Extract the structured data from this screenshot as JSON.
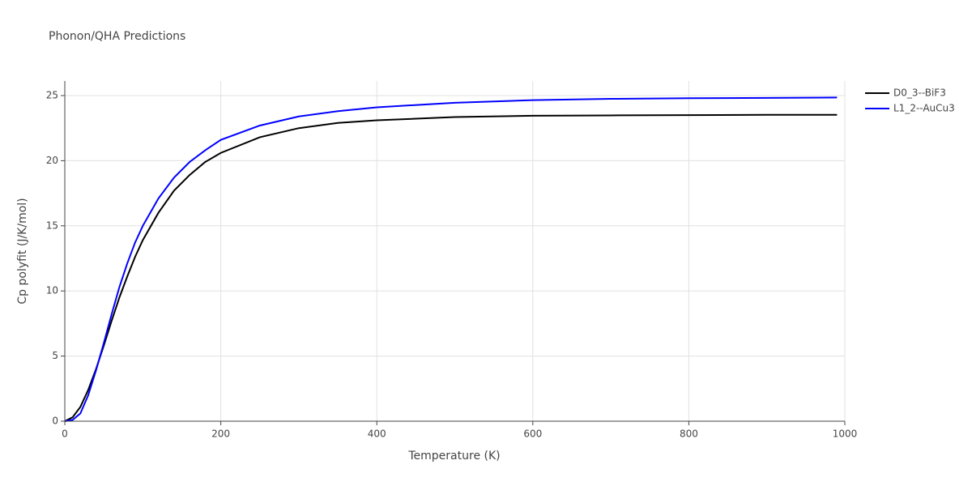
{
  "chart_data": {
    "type": "line",
    "title": "Phonon/QHA Predictions",
    "xlabel": "Temperature (K)",
    "ylabel": "Cp polyfit (J/K/mol)",
    "x": [
      0,
      10,
      20,
      30,
      40,
      50,
      60,
      70,
      80,
      90,
      100,
      120,
      140,
      160,
      180,
      200,
      250,
      300,
      350,
      400,
      500,
      600,
      700,
      800,
      900,
      990
    ],
    "series": [
      {
        "name": "D0_3--BiF3",
        "color": "#000000",
        "values": [
          0,
          0.3,
          1.1,
          2.4,
          4.0,
          5.8,
          7.7,
          9.5,
          11.1,
          12.6,
          13.9,
          16.0,
          17.7,
          18.9,
          19.9,
          20.6,
          21.8,
          22.5,
          22.9,
          23.1,
          23.35,
          23.45,
          23.48,
          23.5,
          23.52,
          23.52
        ]
      },
      {
        "name": "L1_2--AuCu3",
        "color": "#0000ff",
        "values": [
          0,
          0.1,
          0.6,
          2.0,
          3.9,
          6.0,
          8.2,
          10.3,
          12.1,
          13.7,
          15.0,
          17.1,
          18.7,
          19.9,
          20.8,
          21.6,
          22.7,
          23.4,
          23.8,
          24.1,
          24.45,
          24.65,
          24.75,
          24.8,
          24.82,
          24.85
        ]
      }
    ],
    "xlim": [
      0,
      1000
    ],
    "xticks": [
      0,
      200,
      400,
      600,
      800,
      1000
    ],
    "ylim": [
      0,
      25
    ],
    "yticks": [
      0,
      5,
      10,
      15,
      20,
      25
    ],
    "grid": true,
    "legend": "outside-right"
  }
}
